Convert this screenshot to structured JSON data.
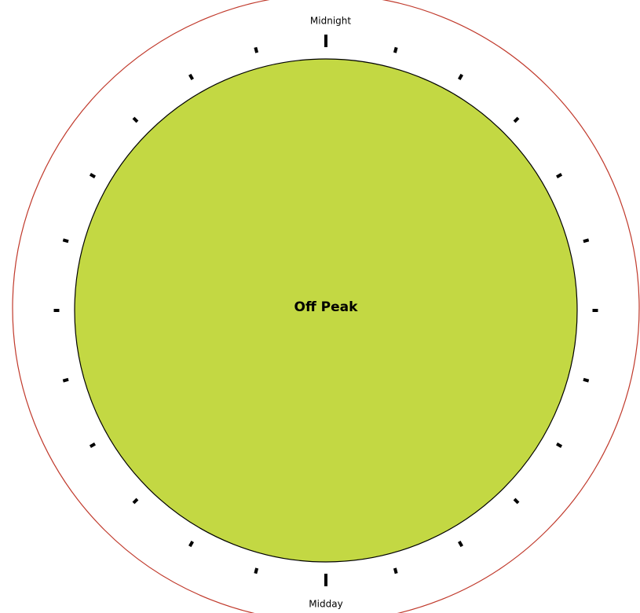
{
  "labels": {
    "top": "Midnight",
    "bottom": "Midday"
  },
  "center": {
    "label": "Off Peak"
  }
}
